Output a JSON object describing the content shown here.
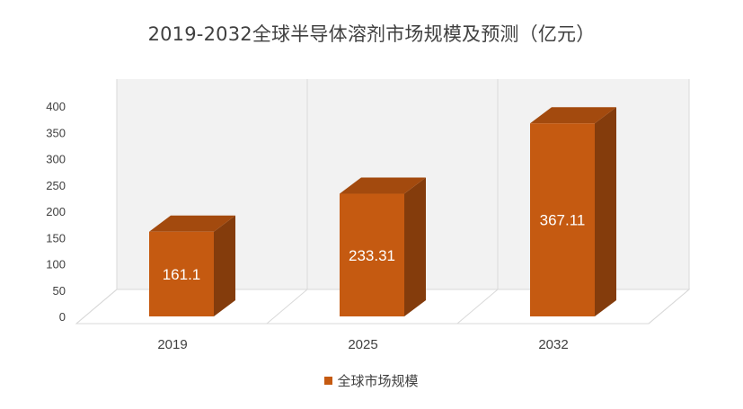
{
  "chart_data": {
    "type": "bar",
    "title": "2019-2032全球半导体溶剂市场规模及预测（亿元）",
    "categories": [
      "2019",
      "2025",
      "2032"
    ],
    "series": [
      {
        "name": "全球市场规模",
        "values": [
          161.1,
          233.31,
          367.11
        ]
      }
    ],
    "data_labels": [
      "161.1",
      "233.31",
      "367.11"
    ],
    "y_ticks": [
      0,
      50,
      100,
      150,
      200,
      250,
      300,
      350,
      400
    ],
    "ylim": [
      0,
      400
    ],
    "xlabel": "",
    "ylabel": "",
    "grid": true,
    "legend_position": "bottom",
    "style": "3d-column"
  },
  "colors": {
    "bar_front": "#C55A11",
    "bar_side": "#843C0C",
    "bar_top": "#A34A0E",
    "wall": "#F2F2F2",
    "grid": "#D9D9D9",
    "text": "#404040"
  }
}
